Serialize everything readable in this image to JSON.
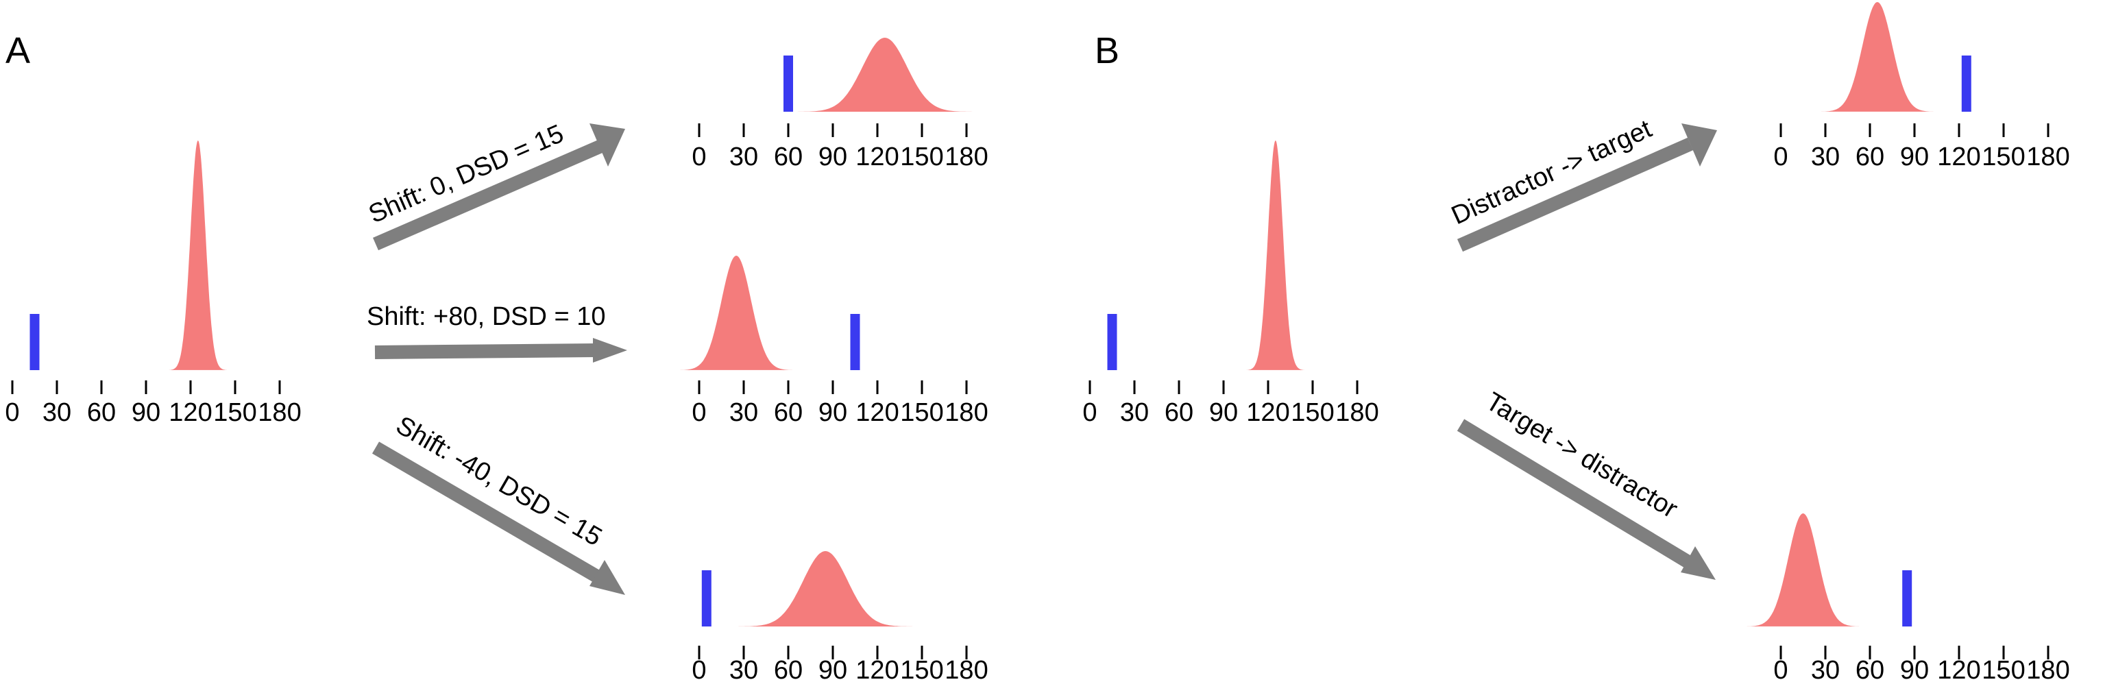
{
  "colors": {
    "distribution": "#f47c7c",
    "marker": "#3a3af0",
    "arrow": "#7f7f7f",
    "axis": "#000000"
  },
  "panels": [
    {
      "label": "A"
    },
    {
      "label": "B"
    }
  ],
  "axis": {
    "ticks": [
      0,
      30,
      60,
      90,
      120,
      150,
      180
    ],
    "tick_labels": [
      "0",
      "30",
      "60",
      "90",
      "120",
      "150",
      "180"
    ]
  },
  "plots": [
    {
      "id": "a-source",
      "gaussian_mean": 125,
      "gaussian_sd": 5,
      "marker": 15
    },
    {
      "id": "a-shift-0",
      "gaussian_mean": 125,
      "gaussian_sd": 15,
      "marker": 60
    },
    {
      "id": "a-shift-plus80",
      "gaussian_mean": 25,
      "gaussian_sd": 10,
      "marker": 105
    },
    {
      "id": "a-shift-minus40",
      "gaussian_mean": 85,
      "gaussian_sd": 15,
      "marker": 5
    },
    {
      "id": "b-source",
      "gaussian_mean": 125,
      "gaussian_sd": 5,
      "marker": 15
    },
    {
      "id": "b-distractor-target",
      "gaussian_mean": 65,
      "gaussian_sd": 10,
      "marker": 125
    },
    {
      "id": "b-target-distractor",
      "gaussian_mean": 15,
      "gaussian_sd": 10,
      "marker": 85
    }
  ],
  "arrows": [
    {
      "label": "Shift: 0, DSD = 15"
    },
    {
      "label": "Shift: +80, DSD = 10"
    },
    {
      "label": "Shift: -40, DSD = 15"
    },
    {
      "label": "Distractor -> target"
    },
    {
      "label": "Target -> distractor"
    }
  ]
}
